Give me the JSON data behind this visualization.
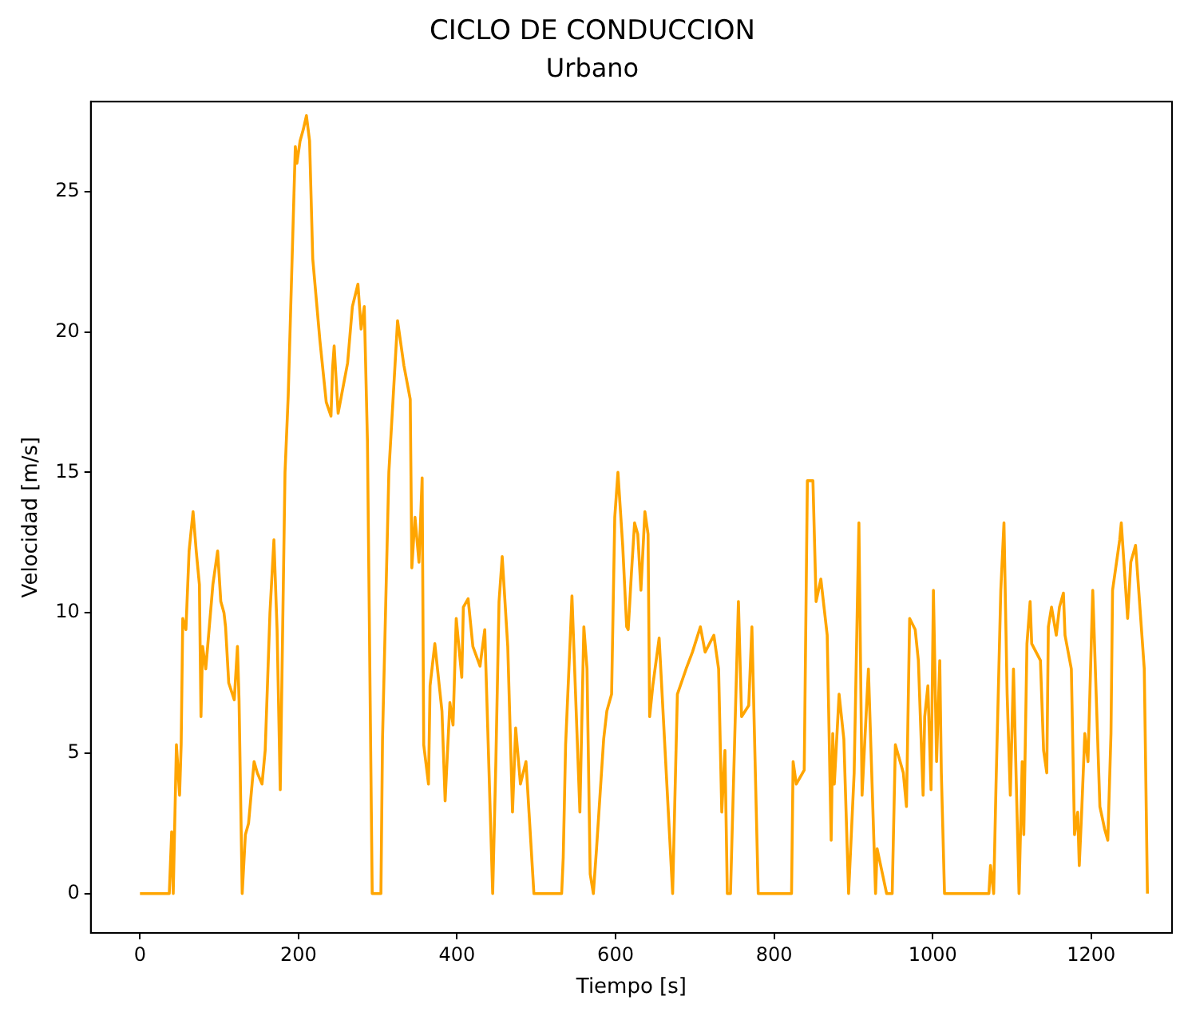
{
  "chart_data": {
    "type": "line",
    "title": "CICLO DE CONDUCCION",
    "subtitle": "Urbano",
    "xlabel": "Tiempo [s]",
    "ylabel": "Velocidad [m/s]",
    "x": [
      0,
      37,
      40,
      42,
      46,
      50,
      52,
      54,
      58,
      62,
      67,
      71,
      75,
      77,
      79,
      83,
      92,
      98,
      102,
      106,
      108,
      112,
      119,
      123,
      125,
      129,
      133,
      137,
      144,
      148,
      154,
      158,
      164,
      169,
      173,
      177,
      183,
      187,
      196,
      198,
      202,
      206,
      210,
      214,
      218,
      227,
      235,
      241,
      243,
      245,
      250,
      254,
      262,
      268,
      275,
      279,
      283,
      287,
      293,
      304,
      306,
      314,
      325,
      333,
      335,
      341,
      343,
      347,
      352,
      356,
      358,
      364,
      366,
      372,
      381,
      385,
      391,
      395,
      399,
      406,
      408,
      414,
      420,
      429,
      435,
      445,
      449,
      453,
      457,
      464,
      470,
      474,
      480,
      487,
      497,
      532,
      534,
      537,
      543,
      545,
      555,
      560,
      564,
      568,
      572,
      576,
      585,
      589,
      595,
      599,
      603,
      609,
      614,
      616,
      620,
      624,
      628,
      632,
      637,
      641,
      643,
      647,
      655,
      672,
      678,
      689,
      697,
      707,
      713,
      724,
      730,
      734,
      738,
      741,
      745,
      755,
      759,
      768,
      772,
      780,
      822,
      824,
      828,
      838,
      842,
      849,
      853,
      859,
      867,
      872,
      874,
      876,
      882,
      888,
      894,
      901,
      907,
      911,
      919,
      928,
      930,
      942,
      949,
      953,
      963,
      967,
      971,
      978,
      982,
      988,
      990,
      994,
      998,
      1001,
      1005,
      1009,
      1011,
      1015,
      1071,
      1073,
      1077,
      1080,
      1086,
      1090,
      1094,
      1098,
      1102,
      1109,
      1113,
      1115,
      1119,
      1123,
      1125,
      1136,
      1140,
      1144,
      1146,
      1150,
      1156,
      1160,
      1165,
      1167,
      1175,
      1179,
      1183,
      1185,
      1188,
      1192,
      1196,
      1202,
      1211,
      1217,
      1221,
      1225,
      1227,
      1236,
      1238,
      1246,
      1250,
      1256,
      1267,
      1271
    ],
    "series": [
      {
        "color": "#ffa500",
        "values": [
          0,
          0,
          2.2,
          0,
          5.3,
          3.5,
          5.3,
          9.8,
          9.4,
          12.2,
          13.6,
          12.2,
          11,
          6.3,
          8.8,
          8,
          11,
          12.2,
          10.4,
          10,
          9.5,
          7.5,
          6.9,
          8.8,
          6.9,
          0,
          2.1,
          2.5,
          4.7,
          4.3,
          3.9,
          5.1,
          10,
          12.6,
          9.4,
          3.7,
          15,
          17.7,
          26.6,
          26,
          26.8,
          27.2,
          27.7,
          26.8,
          22.6,
          19.7,
          17.5,
          17,
          18.7,
          19.5,
          17.1,
          17.7,
          18.9,
          20.9,
          21.7,
          20.1,
          20.9,
          16.1,
          0,
          0,
          5.5,
          15,
          20.4,
          18.8,
          18.5,
          17.6,
          11.6,
          13.4,
          11.8,
          14.8,
          5.3,
          3.9,
          7.4,
          8.9,
          6.5,
          3.3,
          6.8,
          6,
          9.8,
          7.7,
          10.2,
          10.5,
          8.8,
          8.1,
          9.4,
          0,
          4.7,
          10.4,
          12,
          8.8,
          2.9,
          5.9,
          3.9,
          4.7,
          0,
          0,
          1.3,
          5.3,
          9.2,
          10.6,
          2.9,
          9.5,
          8,
          0.7,
          0,
          1.6,
          5.5,
          6.5,
          7.1,
          13.4,
          15,
          12.4,
          9.5,
          9.4,
          11.4,
          13.2,
          12.8,
          10.8,
          13.6,
          12.8,
          6.3,
          7.4,
          9.1,
          0,
          7.1,
          8,
          8.6,
          9.5,
          8.6,
          9.2,
          8,
          2.9,
          5.1,
          0,
          0,
          10.4,
          6.3,
          6.7,
          9.5,
          0,
          0,
          4.7,
          3.9,
          4.4,
          14.7,
          14.7,
          10.4,
          11.2,
          9.2,
          1.9,
          5.7,
          3.9,
          7.1,
          5.5,
          0,
          4.3,
          13.2,
          3.5,
          8,
          0,
          1.6,
          0,
          0,
          5.3,
          4.3,
          3.1,
          9.8,
          9.4,
          8.3,
          3.5,
          6.3,
          7.4,
          3.7,
          10.8,
          4.7,
          8.3,
          4.3,
          0,
          0,
          1,
          0,
          3.9,
          10.8,
          13.2,
          7.1,
          3.5,
          8,
          0,
          4.7,
          2.1,
          8.9,
          10.4,
          8.9,
          8.3,
          5.1,
          4.3,
          9.5,
          10.2,
          9.2,
          10.2,
          10.7,
          9.2,
          8,
          2.1,
          2.9,
          1,
          2.9,
          5.7,
          4.7,
          10.8,
          3.1,
          2.3,
          1.9,
          5.7,
          10.8,
          12.6,
          13.2,
          9.8,
          11.8,
          12.4,
          8,
          0
        ]
      }
    ],
    "xlim": [
      -62,
      1302
    ],
    "ylim": [
      -1.4,
      28.2
    ],
    "xticks": [
      0,
      200,
      400,
      600,
      800,
      1000,
      1200
    ],
    "yticks": [
      0,
      5,
      10,
      15,
      20,
      25
    ],
    "grid": false,
    "legend": false,
    "marker": "none",
    "line_style": "solid"
  }
}
